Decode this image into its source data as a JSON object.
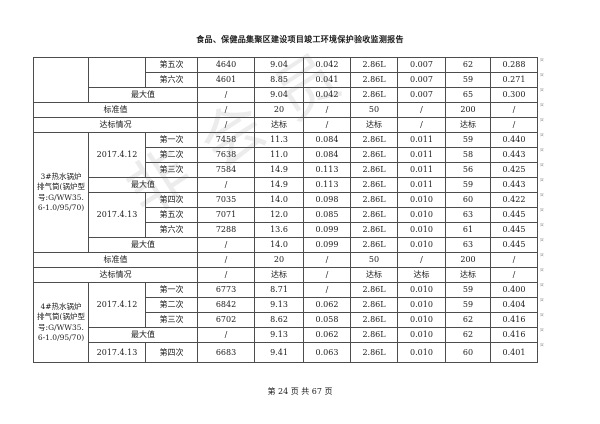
{
  "page": {
    "title": "食品、保健品集聚区建设项目竣工环境保护验收监测报告",
    "footer": "第 24 页 共 67 页",
    "row_end_mark": "¤",
    "watermark": "非会员"
  },
  "table": {
    "rows": [
      [
        {
          "t": "",
          "rs": 3,
          "c": "lbl"
        },
        {
          "t": "",
          "rs": 2
        },
        {
          "t": "第五次"
        },
        {
          "t": "4640"
        },
        {
          "t": "9.04"
        },
        {
          "t": "0.042"
        },
        {
          "t": "2.86L"
        },
        {
          "t": "0.007"
        },
        {
          "t": "62"
        },
        {
          "t": "0.288"
        }
      ],
      [
        {
          "t": "第六次"
        },
        {
          "t": "4601"
        },
        {
          "t": "8.85"
        },
        {
          "t": "0.041"
        },
        {
          "t": "2.86L"
        },
        {
          "t": "0.007"
        },
        {
          "t": "59"
        },
        {
          "t": "0.271"
        }
      ],
      [
        {
          "t": "最大值",
          "cs": 2
        },
        {
          "t": "/"
        },
        {
          "t": "9.04"
        },
        {
          "t": "0.042"
        },
        {
          "t": "2.86L"
        },
        {
          "t": "0.007"
        },
        {
          "t": "65"
        },
        {
          "t": "0.300"
        }
      ],
      [
        {
          "t": "标准值",
          "cs": 3
        },
        {
          "t": "/"
        },
        {
          "t": "20"
        },
        {
          "t": "/"
        },
        {
          "t": "50"
        },
        {
          "t": "/"
        },
        {
          "t": "200"
        },
        {
          "t": "/"
        }
      ],
      [
        {
          "t": "达标情况",
          "cs": 3
        },
        {
          "t": "/"
        },
        {
          "t": "达标"
        },
        {
          "t": "/"
        },
        {
          "t": "达标"
        },
        {
          "t": "/"
        },
        {
          "t": "达标"
        },
        {
          "t": "/"
        }
      ],
      [
        {
          "t": "3#热水锅炉排气筒(锅炉型号:G/WW35.6-1.0/95/70)",
          "rs": 8,
          "c": "lbl"
        },
        {
          "t": "2017.4.12",
          "rs": 3
        },
        {
          "t": "第一次"
        },
        {
          "t": "7458"
        },
        {
          "t": "11.3"
        },
        {
          "t": "0.084"
        },
        {
          "t": "2.86L"
        },
        {
          "t": "0.011"
        },
        {
          "t": "59"
        },
        {
          "t": "0.440"
        }
      ],
      [
        {
          "t": "第二次"
        },
        {
          "t": "7638"
        },
        {
          "t": "11.0"
        },
        {
          "t": "0.084"
        },
        {
          "t": "2.86L"
        },
        {
          "t": "0.011"
        },
        {
          "t": "58"
        },
        {
          "t": "0.443"
        }
      ],
      [
        {
          "t": "第三次"
        },
        {
          "t": "7584"
        },
        {
          "t": "14.9"
        },
        {
          "t": "0.113"
        },
        {
          "t": "2.86L"
        },
        {
          "t": "0.011"
        },
        {
          "t": "56"
        },
        {
          "t": "0.425"
        }
      ],
      [
        {
          "t": "最大值",
          "cs": 2
        },
        {
          "t": "/"
        },
        {
          "t": "14.9"
        },
        {
          "t": "0.113"
        },
        {
          "t": "2.86L"
        },
        {
          "t": "0.011"
        },
        {
          "t": "59"
        },
        {
          "t": "0.443"
        }
      ],
      [
        {
          "t": "2017.4.13",
          "rs": 3
        },
        {
          "t": "第四次"
        },
        {
          "t": "7035"
        },
        {
          "t": "14.0"
        },
        {
          "t": "0.098"
        },
        {
          "t": "2.86L"
        },
        {
          "t": "0.010"
        },
        {
          "t": "60"
        },
        {
          "t": "0.422"
        }
      ],
      [
        {
          "t": "第五次"
        },
        {
          "t": "7071"
        },
        {
          "t": "12.0"
        },
        {
          "t": "0.085"
        },
        {
          "t": "2.86L"
        },
        {
          "t": "0.010"
        },
        {
          "t": "63"
        },
        {
          "t": "0.445"
        }
      ],
      [
        {
          "t": "第六次"
        },
        {
          "t": "7288"
        },
        {
          "t": "13.6"
        },
        {
          "t": "0.099"
        },
        {
          "t": "2.86L"
        },
        {
          "t": "0.010"
        },
        {
          "t": "61"
        },
        {
          "t": "0.445"
        }
      ],
      [
        {
          "t": "最大值",
          "cs": 2
        },
        {
          "t": "/"
        },
        {
          "t": "14.0"
        },
        {
          "t": "0.099"
        },
        {
          "t": "2.86L"
        },
        {
          "t": "0.010"
        },
        {
          "t": "63"
        },
        {
          "t": "0.445"
        }
      ],
      [
        {
          "t": "标准值",
          "cs": 3
        },
        {
          "t": "/"
        },
        {
          "t": "20"
        },
        {
          "t": "/"
        },
        {
          "t": "50"
        },
        {
          "t": "/"
        },
        {
          "t": "200"
        },
        {
          "t": "/"
        }
      ],
      [
        {
          "t": "达标情况",
          "cs": 3
        },
        {
          "t": "/"
        },
        {
          "t": "达标"
        },
        {
          "t": "/"
        },
        {
          "t": "达标"
        },
        {
          "t": "达标"
        },
        {
          "t": "达标"
        },
        {
          "t": "/"
        }
      ],
      [
        {
          "t": "4#热水锅炉排气筒(锅炉型号:G/WW35.6-1.0/95/70)",
          "rs": 5,
          "c": "lbl"
        },
        {
          "t": "2017.4.12",
          "rs": 3
        },
        {
          "t": "第一次"
        },
        {
          "t": "6773"
        },
        {
          "t": "8.71"
        },
        {
          "t": "/"
        },
        {
          "t": "2.86L"
        },
        {
          "t": "0.010"
        },
        {
          "t": "59"
        },
        {
          "t": "0.400"
        }
      ],
      [
        {
          "t": "第二次"
        },
        {
          "t": "6842"
        },
        {
          "t": "9.13"
        },
        {
          "t": "0.062"
        },
        {
          "t": "2.86L"
        },
        {
          "t": "0.010"
        },
        {
          "t": "59"
        },
        {
          "t": "0.404"
        }
      ],
      [
        {
          "t": "第三次"
        },
        {
          "t": "6702"
        },
        {
          "t": "8.62"
        },
        {
          "t": "0.058"
        },
        {
          "t": "2.86L"
        },
        {
          "t": "0.010"
        },
        {
          "t": "62"
        },
        {
          "t": "0.416"
        }
      ],
      [
        {
          "t": "最大值",
          "cs": 2
        },
        {
          "t": "/"
        },
        {
          "t": "9.13"
        },
        {
          "t": "0.062"
        },
        {
          "t": "2.86L"
        },
        {
          "t": "0.010"
        },
        {
          "t": "62"
        },
        {
          "t": "0.416"
        }
      ],
      [
        {
          "t": "2017.4.13"
        },
        {
          "t": "第四次"
        },
        {
          "t": "6683"
        },
        {
          "t": "9.41"
        },
        {
          "t": "0.063"
        },
        {
          "t": "2.86L"
        },
        {
          "t": "0.010"
        },
        {
          "t": "60"
        },
        {
          "t": "0.401"
        }
      ]
    ]
  }
}
